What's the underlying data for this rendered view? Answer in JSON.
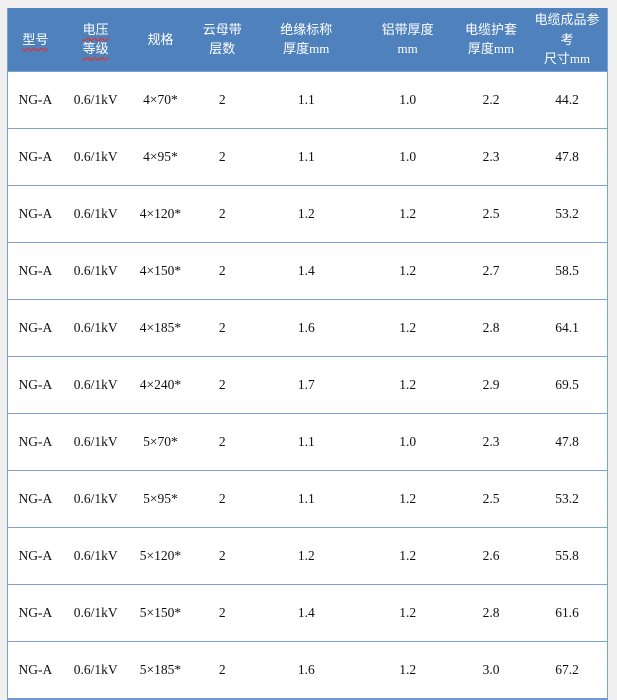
{
  "page": {
    "background_color": "#f0f0f0"
  },
  "table": {
    "header": {
      "background_color": "#4f81bd",
      "text_color": "#ffffff",
      "border_color": "#7ca2d3",
      "columns": [
        {
          "label": "型号",
          "lines": [
            "型号"
          ],
          "misspelled": true
        },
        {
          "label": "电压等级",
          "lines": [
            "电压",
            "等级"
          ],
          "misspelled": true
        },
        {
          "label": "规格",
          "lines": [
            "规格"
          ],
          "misspelled": false
        },
        {
          "label": "云母带层数",
          "lines": [
            "云母带",
            "层数"
          ],
          "misspelled": false
        },
        {
          "label": "绝缘标称厚度mm",
          "lines": [
            "绝缘标称",
            "厚度mm"
          ],
          "misspelled": false
        },
        {
          "label": "铝带厚度mm",
          "lines": [
            "铝带厚度",
            "mm"
          ],
          "misspelled": false
        },
        {
          "label": "电缆护套厚度mm",
          "lines": [
            "电缆护套",
            "厚度mm"
          ],
          "misspelled": false
        },
        {
          "label": "电缆成品参考尺寸mm",
          "lines": [
            "电缆成品参考",
            "尺寸mm"
          ],
          "misspelled": false
        }
      ]
    },
    "rows": [
      [
        "NG-A",
        "0.6/1kV",
        "4×70*",
        "2",
        "1.1",
        "1.0",
        "2.2",
        "44.2"
      ],
      [
        "NG-A",
        "0.6/1kV",
        "4×95*",
        "2",
        "1.1",
        "1.0",
        "2.3",
        "47.8"
      ],
      [
        "NG-A",
        "0.6/1kV",
        "4×120*",
        "2",
        "1.2",
        "1.2",
        "2.5",
        "53.2"
      ],
      [
        "NG-A",
        "0.6/1kV",
        "4×150*",
        "2",
        "1.4",
        "1.2",
        "2.7",
        "58.5"
      ],
      [
        "NG-A",
        "0.6/1kV",
        "4×185*",
        "2",
        "1.6",
        "1.2",
        "2.8",
        "64.1"
      ],
      [
        "NG-A",
        "0.6/1kV",
        "4×240*",
        "2",
        "1.7",
        "1.2",
        "2.9",
        "69.5"
      ],
      [
        "NG-A",
        "0.6/1kV",
        "5×70*",
        "2",
        "1.1",
        "1.0",
        "2.3",
        "47.8"
      ],
      [
        "NG-A",
        "0.6/1kV",
        "5×95*",
        "2",
        "1.1",
        "1.2",
        "2.5",
        "53.2"
      ],
      [
        "NG-A",
        "0.6/1kV",
        "5×120*",
        "2",
        "1.2",
        "1.2",
        "2.6",
        "55.8"
      ],
      [
        "NG-A",
        "0.6/1kV",
        "5×150*",
        "2",
        "1.4",
        "1.2",
        "2.8",
        "61.6"
      ],
      [
        "NG-A",
        "0.6/1kV",
        "5×185*",
        "2",
        "1.6",
        "1.2",
        "3.0",
        "67.2"
      ]
    ]
  }
}
